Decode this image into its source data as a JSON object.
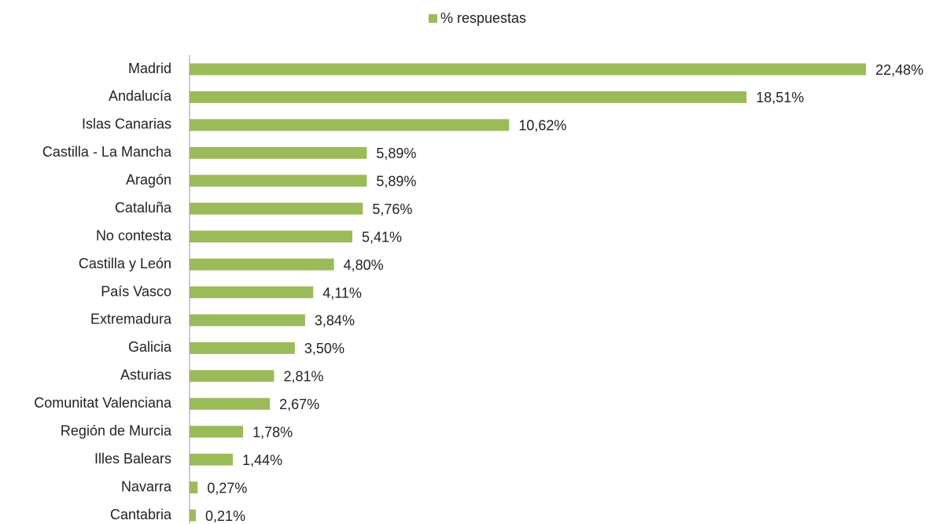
{
  "chart_data": {
    "type": "bar",
    "orientation": "horizontal",
    "categories": [
      "Madrid",
      "Andalucía",
      "Islas Canarias",
      "Castilla - La Mancha",
      "Aragón",
      "Cataluña",
      "No contesta",
      "Castilla y León",
      "País Vasco",
      "Extremadura",
      "Galicia",
      "Asturias",
      "Comunitat Valenciana",
      "Región de Murcia",
      "Illes Balears",
      "Navarra",
      "Cantabria"
    ],
    "series": [
      {
        "name": "% respuestas",
        "color": "#9bbb59",
        "values": [
          22.48,
          18.51,
          10.62,
          5.89,
          5.89,
          5.76,
          5.41,
          4.8,
          4.11,
          3.84,
          3.5,
          2.81,
          2.67,
          1.78,
          1.44,
          0.27,
          0.21
        ],
        "value_labels": [
          "22,48%",
          "18,51%",
          "10,62%",
          "5,89%",
          "5,89%",
          "5,76%",
          "5,41%",
          "4,80%",
          "4,11%",
          "3,84%",
          "3,50%",
          "2,81%",
          "2,67%",
          "1,78%",
          "1,44%",
          "0,27%",
          "0,21%"
        ]
      }
    ],
    "legend": "top"
  }
}
